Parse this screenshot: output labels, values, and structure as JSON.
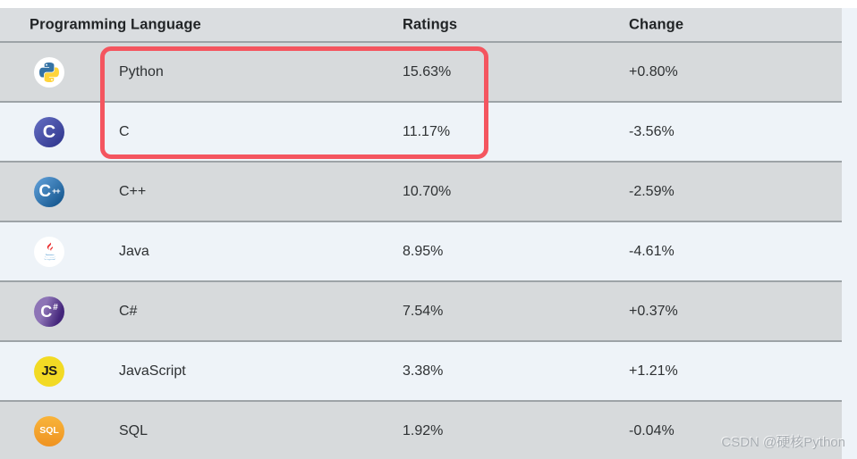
{
  "header": {
    "columns": [
      "Programming Language",
      "Ratings",
      "Change"
    ]
  },
  "table": {
    "rows": [
      {
        "icon": "python-icon",
        "language": "Python",
        "rating": "15.63%",
        "change": "+0.80%"
      },
      {
        "icon": "c-icon",
        "language": "C",
        "rating": "11.17%",
        "change": "-3.56%"
      },
      {
        "icon": "cpp-icon",
        "language": "C++",
        "rating": "10.70%",
        "change": "-2.59%"
      },
      {
        "icon": "java-icon",
        "language": "Java",
        "rating": "8.95%",
        "change": "-4.61%"
      },
      {
        "icon": "csharp-icon",
        "language": "C#",
        "rating": "7.54%",
        "change": "+0.37%"
      },
      {
        "icon": "javascript-icon",
        "language": "JavaScript",
        "rating": "3.38%",
        "change": "+1.21%"
      },
      {
        "icon": "sql-icon",
        "language": "SQL",
        "rating": "1.92%",
        "change": "-0.04%"
      }
    ]
  },
  "annotation": {
    "highlighted_languages": [
      "Python",
      "C"
    ],
    "highlight_color": "#f4555f"
  },
  "watermark": {
    "text": "CSDN @硬核Python"
  },
  "colors": {
    "header_bg": "#dadde0",
    "row_gray": "#d7dadc",
    "row_light": "#eef3f8",
    "row_border": "#9da3a7",
    "page_bg": "#eef3f8",
    "text": "#2e3133"
  }
}
